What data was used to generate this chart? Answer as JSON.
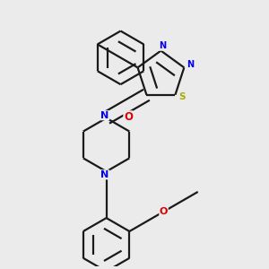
{
  "bg_color": "#ebebeb",
  "bond_color": "#1a1a1a",
  "N_color": "#0000ee",
  "S_color": "#aaaa00",
  "O_color": "#dd0000",
  "line_width": 1.6,
  "dbo": 0.018,
  "fig_w": 3.0,
  "fig_h": 3.0,
  "xlim": [
    0.0,
    1.0
  ],
  "ylim": [
    0.0,
    1.0
  ]
}
